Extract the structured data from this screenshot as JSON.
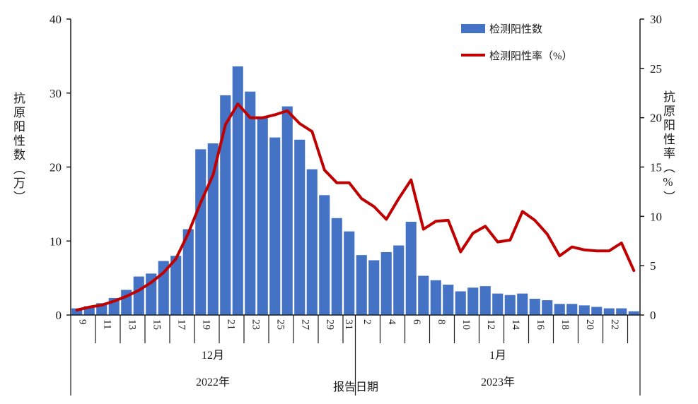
{
  "chart_data": {
    "type": "bar",
    "subtype": "combo-bar-line-dual-axis",
    "title": "",
    "x_axis": {
      "title": "报告日期",
      "day_tick_labels": [
        "9",
        "11",
        "13",
        "15",
        "17",
        "19",
        "21",
        "23",
        "25",
        "27",
        "29",
        "31",
        "2",
        "4",
        "6",
        "8",
        "10",
        "12",
        "14",
        "16",
        "18",
        "20",
        "22"
      ],
      "days": [
        9,
        10,
        11,
        12,
        13,
        14,
        15,
        16,
        17,
        18,
        19,
        20,
        21,
        22,
        23,
        24,
        25,
        26,
        27,
        28,
        29,
        30,
        31,
        1,
        2,
        3,
        4,
        5,
        6,
        7,
        8,
        9,
        10,
        11,
        12,
        13,
        14,
        15,
        16,
        17,
        18,
        19,
        20,
        21,
        22,
        23
      ],
      "month_groups": [
        {
          "label": "12月",
          "year": "2022年",
          "days_count": 23
        },
        {
          "label": "1月",
          "year": "2023年",
          "days_count": 23
        }
      ]
    },
    "y_left": {
      "title": "抗原阳性数（万）",
      "ticks": [
        0,
        10,
        20,
        30,
        40
      ],
      "min": 0,
      "max": 40
    },
    "y_right": {
      "title": "抗原阳性率（%）",
      "ticks": [
        0,
        5,
        10,
        15,
        20,
        25,
        30
      ],
      "min": 0,
      "max": 30
    },
    "legend": {
      "position": "top-right",
      "items": [
        "检测阳性数",
        "检测阳性率（%）"
      ]
    },
    "series": [
      {
        "name": "检测阳性数",
        "type": "bar",
        "axis": "left",
        "color": "#4472C4",
        "values": [
          0.9,
          1.2,
          1.6,
          2.3,
          3.4,
          5.2,
          5.6,
          7.3,
          8.0,
          11.6,
          22.4,
          23.2,
          29.7,
          33.6,
          30.2,
          26.7,
          24.0,
          28.2,
          23.7,
          19.7,
          16.2,
          13.1,
          11.3,
          8.1,
          7.4,
          8.5,
          9.4,
          12.6,
          5.3,
          4.7,
          4.1,
          3.2,
          3.7,
          3.9,
          2.9,
          2.7,
          2.9,
          2.2,
          2.0,
          1.5,
          1.5,
          1.3,
          1.1,
          0.9,
          0.9,
          0.5
        ]
      },
      {
        "name": "检测阳性率（%）",
        "type": "line",
        "axis": "right",
        "color": "#C00000",
        "values": [
          0.5,
          0.8,
          1.0,
          1.4,
          1.9,
          2.5,
          3.3,
          4.3,
          5.7,
          8.3,
          11.4,
          14.2,
          19.3,
          21.4,
          20.0,
          20.0,
          20.3,
          20.7,
          19.4,
          18.6,
          14.7,
          13.4,
          13.4,
          11.8,
          11.0,
          9.7,
          11.8,
          13.7,
          8.7,
          9.5,
          9.6,
          6.4,
          8.3,
          9.0,
          7.4,
          7.6,
          10.5,
          9.6,
          8.2,
          6.0,
          6.9,
          6.6,
          6.5,
          6.5,
          7.3,
          4.5
        ]
      }
    ],
    "axis_color": "#1a1a1a",
    "grid": "off"
  }
}
